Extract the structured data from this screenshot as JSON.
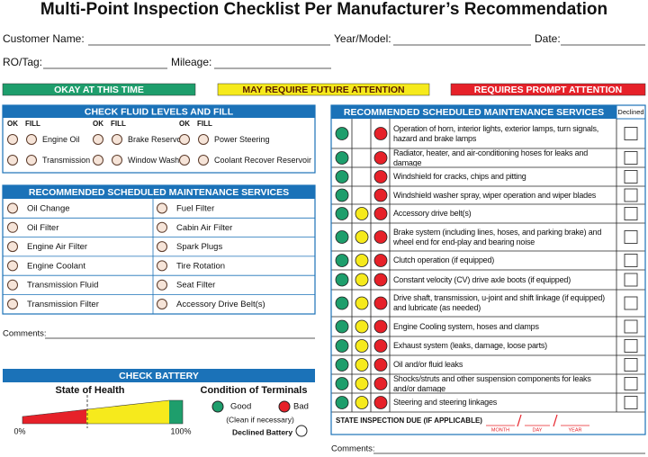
{
  "header": {
    "title": "Multi-Point Inspection Checklist Per Manufacturer’s Recommendation"
  },
  "fields": {
    "customer_name": "Customer Name:",
    "year_model": "Year/Model:",
    "date": "Date:",
    "ro_tag": "RO/Tag:",
    "mileage": "Mileage:"
  },
  "legend": [
    {
      "label": "OKAY AT THIS TIME",
      "color": "#1e9e6c"
    },
    {
      "label": "MAY REQUIRE FUTURE ATTENTION",
      "color": "#f6ea1c"
    },
    {
      "label": "REQUIRES PROMPT ATTENTION",
      "color": "#e62129"
    }
  ],
  "fluids": {
    "title": "CHECK FLUID LEVELS AND FILL",
    "ok": "OK",
    "fill": "FILL",
    "items": [
      "Engine Oil",
      "Brake Reservoir",
      "Power Steering",
      "Transmission",
      "Window Washer",
      "Coolant Recover Reservoir"
    ]
  },
  "maintenance": {
    "title": "RECOMMENDED SCHEDULED MAINTENANCE SERVICES",
    "items": [
      "Oil Change",
      "Fuel Filter",
      "Oil Filter",
      "Cabin Air Filter",
      "Engine Air Filter",
      "Spark Plugs",
      "Engine Coolant",
      "Tire Rotation",
      "Transmission Fluid",
      "Seat Filter",
      "Transmission Filter",
      "Accessory Drive Belt(s)"
    ]
  },
  "comments_left": "Comments:",
  "battery": {
    "title": "CHECK BATTERY",
    "state_of_health": "State of Health",
    "min": "0%",
    "max": "100%",
    "terminals": "Condition of Terminals",
    "good": "Good",
    "bad": "Bad",
    "clean": "(Clean if necessary)",
    "declined": "Declined Battery"
  },
  "services": {
    "title": "RECOMMENDED SCHEDULED MAINTENANCE SERVICES",
    "declined": "Declined",
    "rows": [
      {
        "text": "Operation of horn, interior lights, exterior lamps, turn signals, hazard and brake lamps",
        "yellow": false
      },
      {
        "text": "Radiator, heater, and air-conditioning hoses for leaks and damage",
        "yellow": false
      },
      {
        "text": "Windshield for cracks, chips and pitting",
        "yellow": false
      },
      {
        "text": "Windshield washer spray, wiper operation and wiper blades",
        "yellow": false
      },
      {
        "text": "Accessory drive belt(s)",
        "yellow": true
      },
      {
        "text": "Brake system (including lines, hoses, and parking brake) and wheel end for end-play and bearing noise",
        "yellow": true
      },
      {
        "text": "Clutch operation (if equipped)",
        "yellow": true
      },
      {
        "text": "Constant velocity (CV) drive axle boots (if equipped)",
        "yellow": true
      },
      {
        "text": "Drive shaft, transmission, u-joint and shift linkage (if equipped) and lubricate (as needed)",
        "yellow": true
      },
      {
        "text": "Engine Cooling system, hoses and clamps",
        "yellow": true
      },
      {
        "text": "Exhaust system (leaks, damage, loose parts)",
        "yellow": true
      },
      {
        "text": "Oil and/or fluid leaks",
        "yellow": true
      },
      {
        "text": "Shocks/struts and other suspension components for leaks and/or damage",
        "yellow": true
      },
      {
        "text": "Steering and steering linkages",
        "yellow": true
      }
    ],
    "state_inspection": "STATE INSPECTION DUE (IF APPLICABLE)",
    "month": "MONTH",
    "day": "DAY",
    "year": "YEAR"
  },
  "comments_right": "Comments:"
}
